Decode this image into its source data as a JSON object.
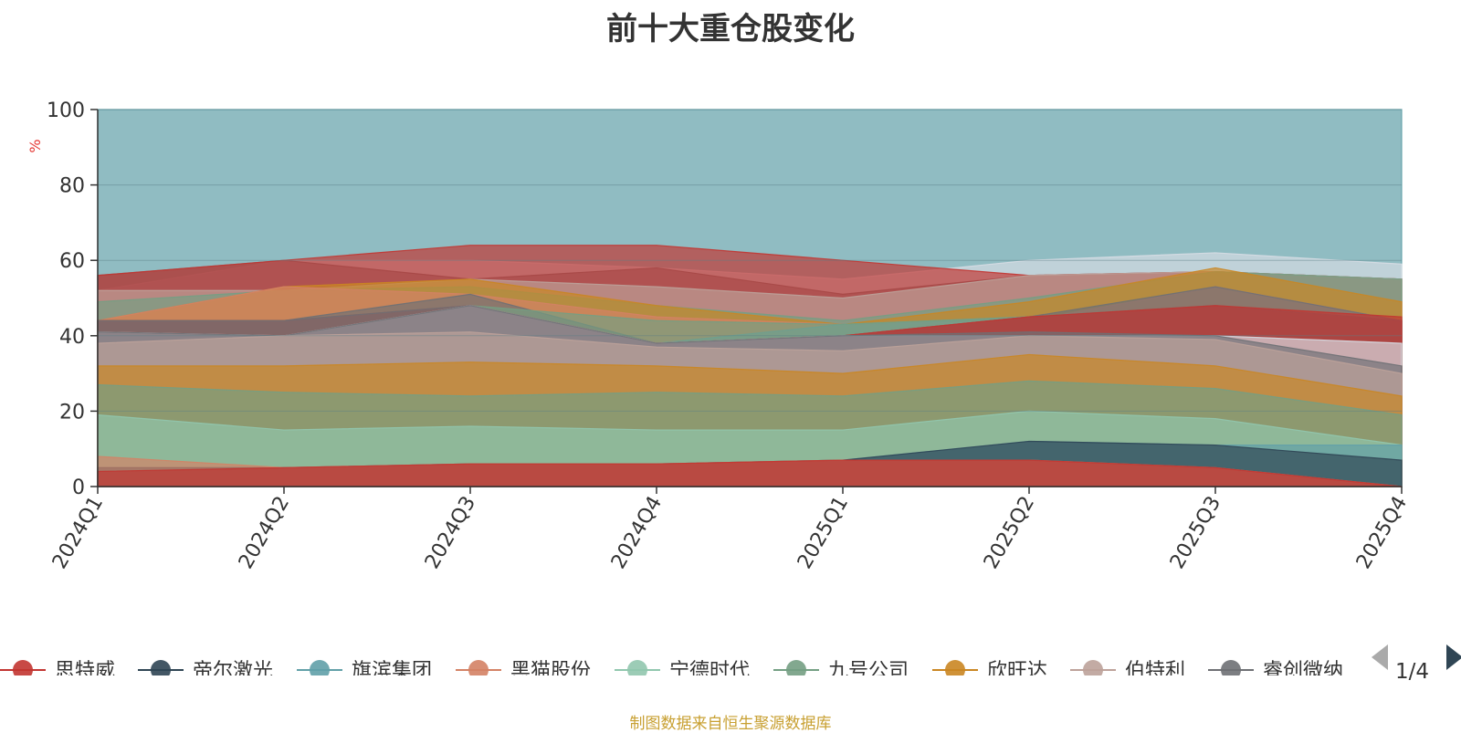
{
  "title": "前十大重仓股变化",
  "footer": "制图数据来自恒生聚源数据库",
  "legend_page": "1/4",
  "chart_data": {
    "type": "area",
    "title": "前十大重仓股变化",
    "ylabel": "%",
    "ylim": [
      0,
      100
    ],
    "yticks": [
      0,
      20,
      40,
      60,
      80,
      100
    ],
    "categories": [
      "2024Q1",
      "2024Q2",
      "2024Q3",
      "2024Q4",
      "2025Q1",
      "2025Q2",
      "2025Q3",
      "2025Q4"
    ],
    "grid": true,
    "legend_position": "bottom",
    "legend": [
      {
        "name": "思特威",
        "color": "#c23531"
      },
      {
        "name": "帝尔激光",
        "color": "#2f4554"
      },
      {
        "name": "旗滨集团",
        "color": "#61a0a8"
      },
      {
        "name": "黑猫股份",
        "color": "#d48265"
      },
      {
        "name": "宁德时代",
        "color": "#91c7ae"
      },
      {
        "name": "九号公司",
        "color": "#749f83"
      },
      {
        "name": "欣旺达",
        "color": "#ca8622"
      },
      {
        "name": "伯特利",
        "color": "#bda29a"
      },
      {
        "name": "睿创微纳",
        "color": "#6e7074"
      }
    ],
    "layers": [
      {
        "color": "#61a0a8",
        "values": [
          100,
          100,
          100,
          100,
          100,
          100,
          100,
          100
        ]
      },
      {
        "color": "#d7dde4",
        "values": [
          52,
          60,
          60,
          58,
          55,
          60,
          62,
          59
        ]
      },
      {
        "color": "#6e7074",
        "values": [
          56,
          60,
          55,
          58,
          51,
          56,
          57,
          55
        ]
      },
      {
        "color": "#c23531",
        "values": [
          56,
          60,
          64,
          64,
          60,
          56,
          57,
          55
        ]
      },
      {
        "color": "#bda29a",
        "values": [
          52,
          52,
          55,
          53,
          50,
          56,
          57,
          55
        ]
      },
      {
        "color": "#749f83",
        "values": [
          49,
          52,
          53,
          48,
          44,
          50,
          57,
          55
        ]
      },
      {
        "color": "#ca8622",
        "values": [
          44,
          53,
          55,
          48,
          43,
          49,
          58,
          49
        ]
      },
      {
        "color": "#d48265",
        "values": [
          44,
          53,
          51,
          45,
          43,
          44,
          53,
          44
        ]
      },
      {
        "color": "#6e7074",
        "values": [
          44,
          44,
          51,
          38,
          40,
          45,
          53,
          44
        ]
      },
      {
        "color": "#61a0a8",
        "values": [
          44,
          44,
          48,
          38,
          43,
          45,
          48,
          44
        ]
      },
      {
        "color": "#749f83",
        "values": [
          44,
          44,
          48,
          44,
          43,
          45,
          48,
          44
        ]
      },
      {
        "color": "#c23531",
        "values": [
          44,
          44,
          48,
          38,
          40,
          45,
          48,
          44
        ]
      },
      {
        "color": "#6e7074",
        "values": [
          44,
          44,
          48,
          38,
          40,
          45,
          48,
          44
        ]
      },
      {
        "color": "#c23531",
        "values": [
          41,
          40,
          48,
          38,
          40,
          45,
          48,
          45
        ]
      },
      {
        "color": "#d7dde4",
        "values": [
          41,
          40,
          48,
          38,
          40,
          40,
          40,
          38
        ]
      },
      {
        "color": "#6e7074",
        "values": [
          41,
          40,
          48,
          38,
          40,
          41,
          40,
          32
        ]
      },
      {
        "color": "#bda29a",
        "values": [
          38,
          40,
          41,
          37,
          36,
          40,
          39,
          30
        ]
      },
      {
        "color": "#ca8622",
        "values": [
          32,
          32,
          33,
          32,
          30,
          35,
          32,
          24
        ]
      },
      {
        "color": "#749f83",
        "values": [
          27,
          25,
          24,
          25,
          24,
          28,
          26,
          19
        ]
      },
      {
        "color": "#91c7ae",
        "values": [
          19,
          15,
          16,
          15,
          15,
          20,
          18,
          11
        ]
      },
      {
        "color": "#61a0a8",
        "values": [
          5,
          5,
          6,
          6,
          7,
          12,
          11,
          11
        ]
      },
      {
        "color": "#2f4554",
        "values": [
          5,
          5,
          6,
          6,
          7,
          12,
          11,
          7
        ]
      },
      {
        "color": "#d48265",
        "values": [
          8,
          5,
          6,
          6,
          7,
          7,
          5,
          0
        ]
      },
      {
        "color": "#c23531",
        "values": [
          4,
          5,
          6,
          6,
          7,
          7,
          5,
          0
        ]
      }
    ]
  }
}
